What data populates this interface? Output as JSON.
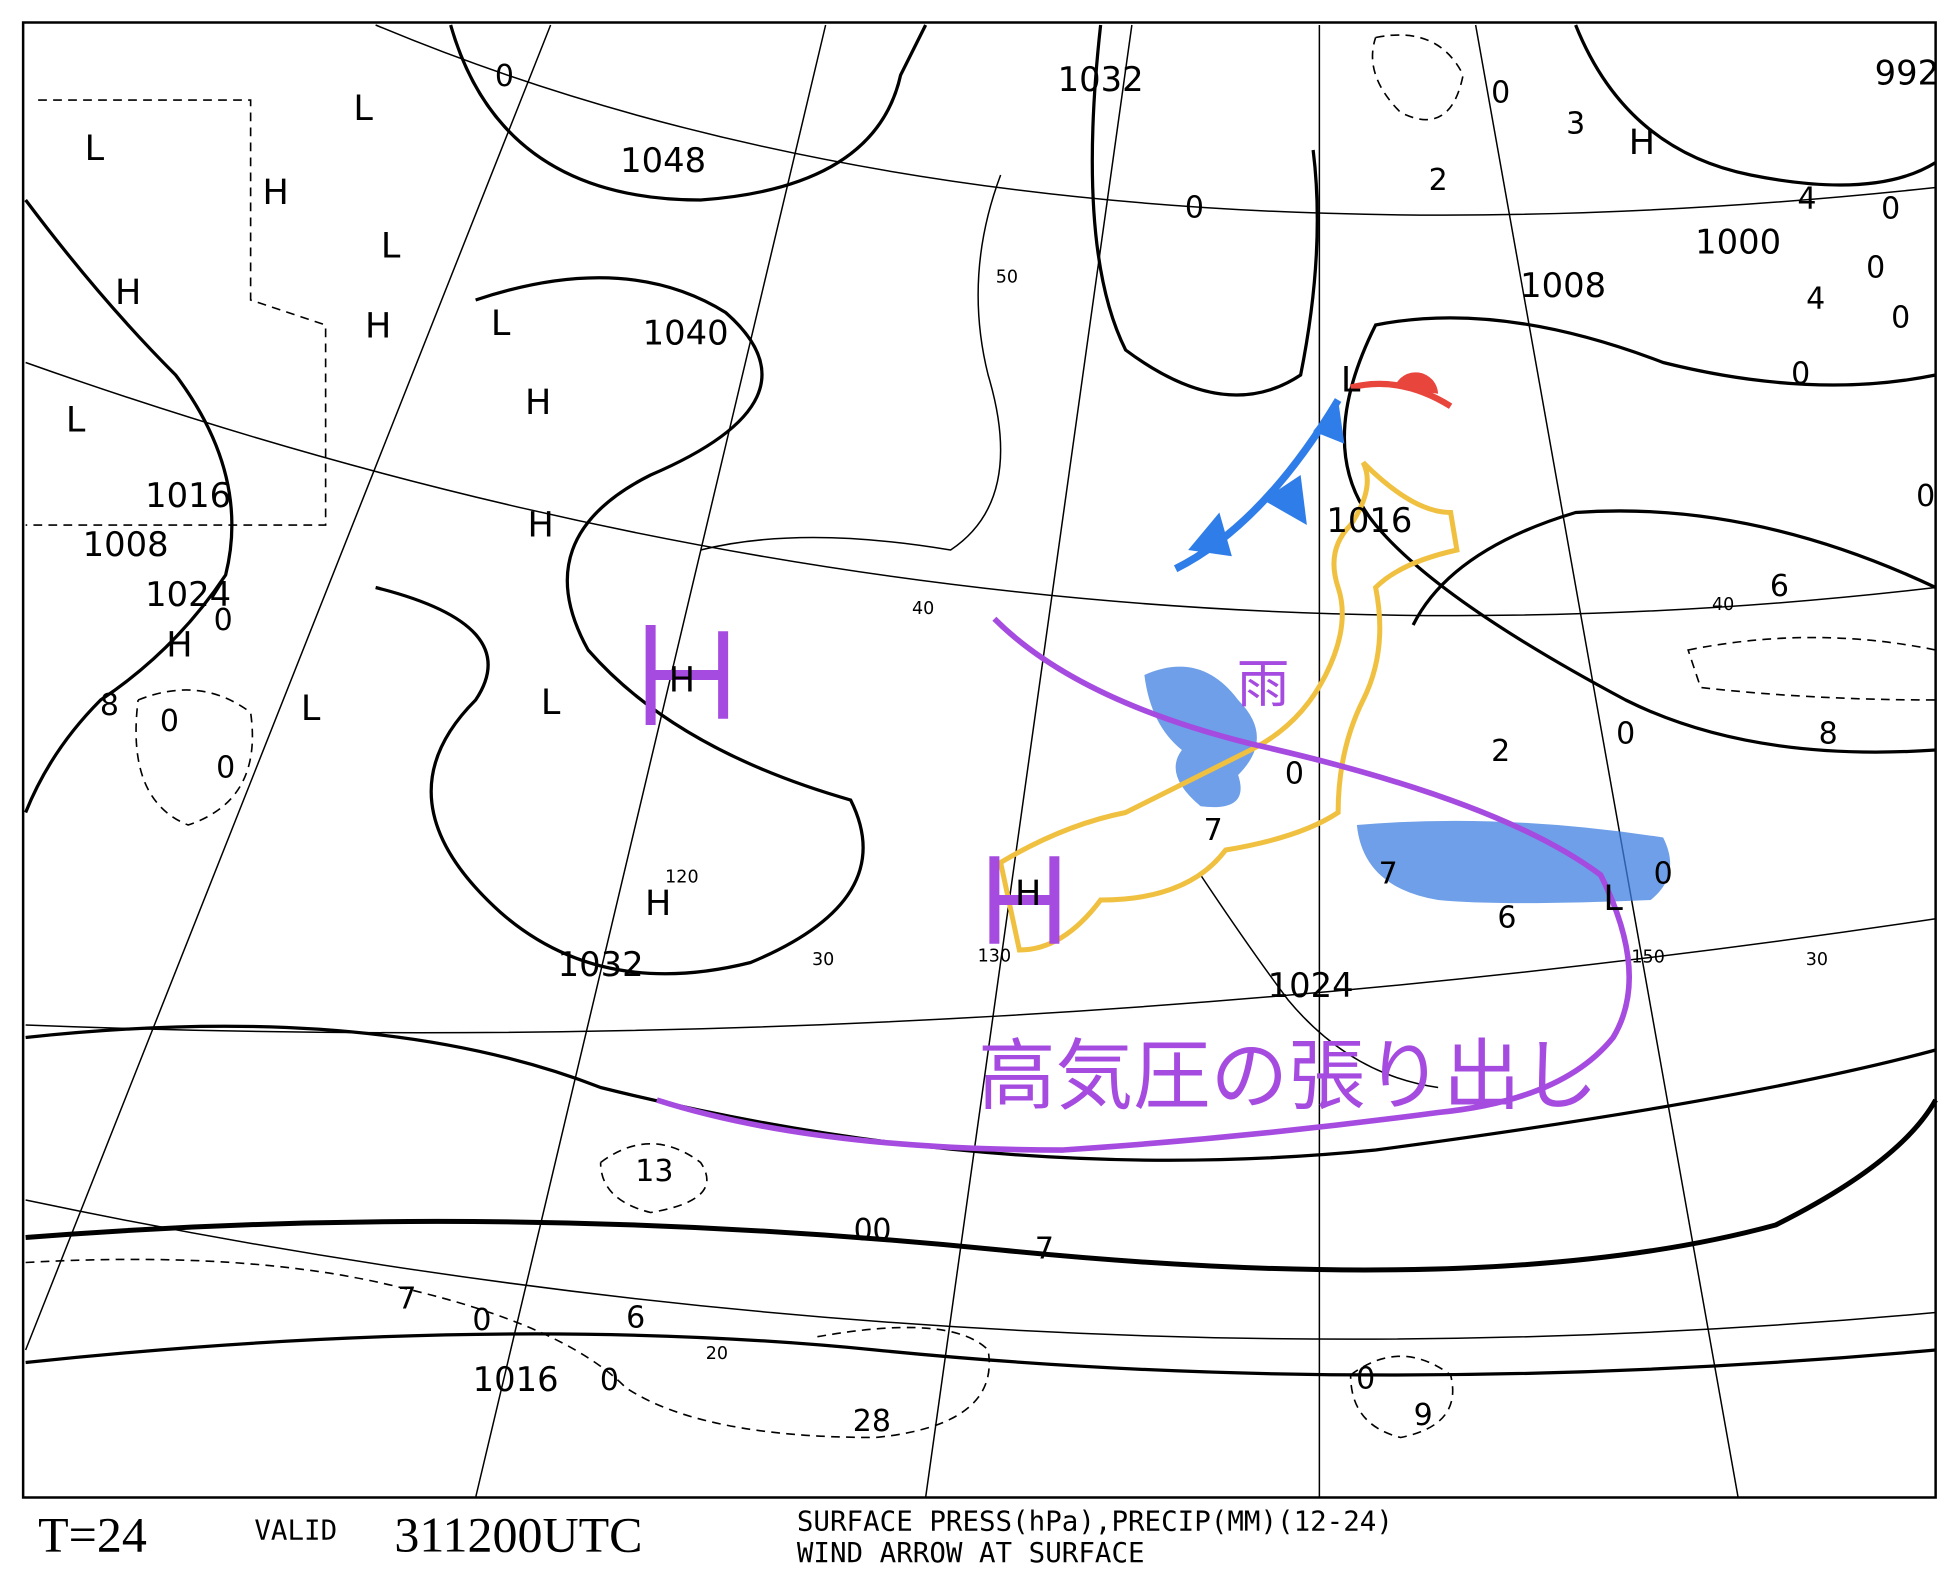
{
  "map": {
    "isobar_labels": [
      1032,
      1048,
      1040,
      1008,
      1000,
      992,
      1016,
      1008,
      1024,
      1016,
      1032,
      1024,
      1016
    ],
    "pressure_centers": [
      "L",
      "H",
      "L",
      "L",
      "H",
      "H",
      "L",
      "H",
      "H",
      "L",
      "H",
      "L",
      "L",
      "H",
      "H",
      "H",
      "L",
      "H",
      "L"
    ],
    "precip_labels": [
      0,
      0,
      0,
      3,
      2,
      4,
      0,
      0,
      0,
      4,
      0,
      0,
      6,
      2,
      0,
      8,
      0,
      7,
      7,
      6,
      0,
      0,
      8,
      0,
      0,
      13,
      0,
      0,
      7,
      7,
      0,
      6,
      0,
      28,
      0,
      9
    ],
    "grid_labels": [
      50,
      40,
      40,
      30,
      30,
      20,
      120,
      130,
      150
    ],
    "annotations": {
      "rain": "雨",
      "high_pressure_extension": "高気圧の張り出し"
    },
    "footer": {
      "forecast_time": "T=24",
      "valid_label": "VALID",
      "valid_time": "311200UTC",
      "description_line1": "SURFACE PRESS(hPa),PRECIP(MM)(12-24)",
      "description_line2": "WIND ARROW AT SURFACE"
    }
  }
}
